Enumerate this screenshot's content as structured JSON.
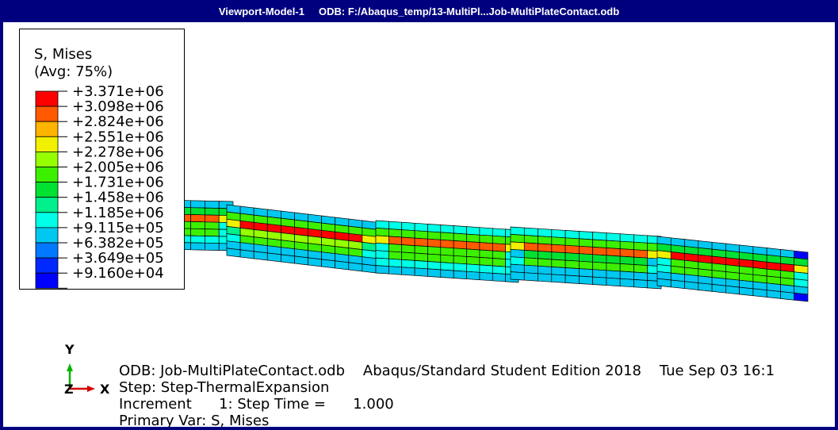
{
  "window": {
    "title": "Viewport-Model-1     ODB: F:/Abaqus_temp/13-MultiPl...Job-MultiPlateContact.odb"
  },
  "legend": {
    "title": "S, Mises",
    "subtitle": "(Avg: 75%)",
    "entries": [
      {
        "label": "+3.371e+06",
        "color": "#ff0000"
      },
      {
        "label": "+3.098e+06",
        "color": "#ff5a00"
      },
      {
        "label": "+2.824e+06",
        "color": "#ffb400"
      },
      {
        "label": "+2.551e+06",
        "color": "#f0f000"
      },
      {
        "label": "+2.278e+06",
        "color": "#96ff00"
      },
      {
        "label": "+2.005e+06",
        "color": "#3cf000"
      },
      {
        "label": "+1.731e+06",
        "color": "#00e132"
      },
      {
        "label": "+1.458e+06",
        "color": "#00f08c"
      },
      {
        "label": "+1.185e+06",
        "color": "#00ffe6"
      },
      {
        "label": "+9.115e+05",
        "color": "#00c8f0"
      },
      {
        "label": "+6.382e+05",
        "color": "#0078ff"
      },
      {
        "label": "+3.649e+05",
        "color": "#0028ff"
      },
      {
        "label": "+9.160e+04",
        "color": "#0000ff"
      }
    ]
  },
  "info": {
    "odb_line": "ODB: Job-MultiPlateContact.odb    Abaqus/Standard Student Edition 2018    Tue Sep 03 16:1",
    "step_line": "Step: Step-ThermalExpansion",
    "increment_line": "Increment      1: Step Time =      1.000",
    "primary_var_line": "Primary Var: S, Mises"
  },
  "triad": {
    "y_label": "Y",
    "x_label": "X",
    "z_label": "Z",
    "x_color": "#d20000",
    "y_color": "#00b400",
    "z_color": "#0000d2"
  },
  "model": {
    "description_colors": {
      "outer": "#00c8f0",
      "mid": "#3cf000",
      "core": "#ff0000",
      "band": "#ff5a00",
      "cap": "#0000ff"
    }
  }
}
